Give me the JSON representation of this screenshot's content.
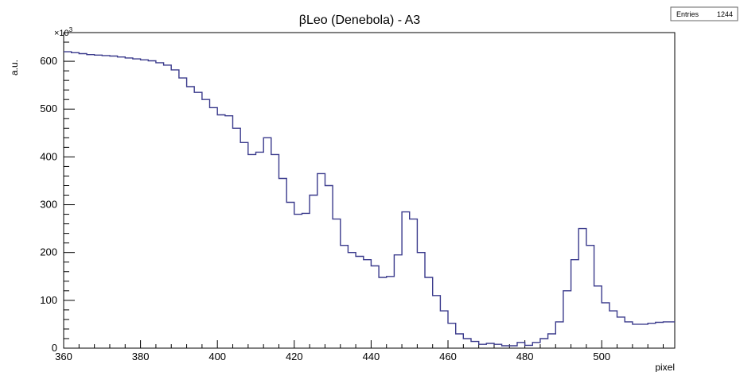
{
  "chart_data": {
    "type": "line",
    "title": "βLeo (Denebola) - A3",
    "xlabel": "pixel",
    "ylabel": "a.u.",
    "y_multiplier": "×10",
    "y_multiplier_exp": "3",
    "xlim": [
      360,
      519
    ],
    "ylim": [
      0,
      660
    ],
    "x_ticks": [
      360,
      380,
      400,
      420,
      440,
      460,
      480,
      500
    ],
    "y_ticks": [
      0,
      100,
      200,
      300,
      400,
      500,
      600
    ],
    "grid": false,
    "style": "step-histogram",
    "line_color": "#3a3a8c",
    "stats_box": {
      "label": "Entries",
      "value": "1244"
    },
    "series": [
      {
        "x": [
          360,
          362,
          364,
          366,
          368,
          370,
          372,
          374,
          376,
          378,
          380,
          382,
          384,
          386,
          388,
          390,
          392,
          394,
          396,
          398,
          400,
          402,
          404,
          406,
          408,
          410,
          412,
          414,
          416,
          418,
          420,
          422,
          424,
          426,
          428,
          430,
          432,
          434,
          436,
          438,
          440,
          442,
          444,
          446,
          448,
          450,
          452,
          454,
          456,
          458,
          460,
          462,
          464,
          466,
          468,
          470,
          472,
          474,
          476,
          478,
          480,
          482,
          484,
          486,
          488,
          490,
          492,
          494,
          496,
          498,
          500,
          502,
          504,
          506,
          508,
          510,
          512,
          514,
          516,
          518
        ],
        "y": [
          620,
          618,
          616,
          614,
          613,
          612,
          611,
          609,
          607,
          605,
          603,
          601,
          597,
          592,
          582,
          565,
          547,
          535,
          520,
          503,
          488,
          486,
          460,
          430,
          405,
          410,
          440,
          405,
          355,
          305,
          280,
          282,
          320,
          365,
          340,
          270,
          215,
          200,
          192,
          185,
          172,
          148,
          150,
          195,
          285,
          270,
          200,
          148,
          110,
          78,
          52,
          30,
          20,
          14,
          8,
          10,
          8,
          5,
          5,
          12,
          6,
          12,
          20,
          30,
          55,
          120,
          185,
          250,
          215,
          130,
          95,
          78,
          65,
          55,
          50,
          50,
          52,
          54,
          55,
          55
        ]
      }
    ]
  }
}
